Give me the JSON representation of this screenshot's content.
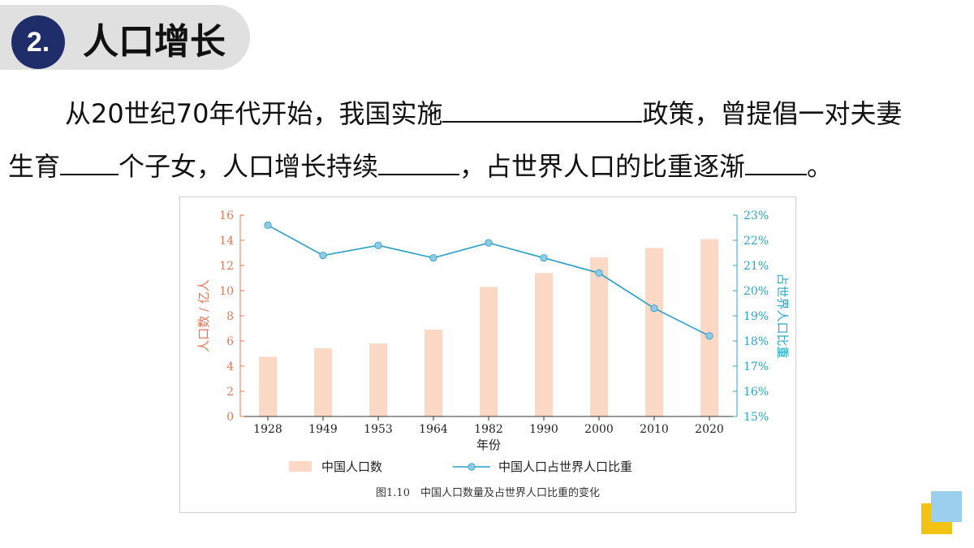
{
  "header": {
    "number": "2.",
    "title": "人口增长"
  },
  "paragraph": {
    "line1_a": "从20世纪70年代开始，我国实施",
    "line1_b": "政策，曾提倡一对夫妻",
    "line2_a": "生育",
    "line2_b": "个子女，人口增长持续",
    "line2_c": "，占世界人口的比重逐渐",
    "line2_d": "。"
  },
  "colors": {
    "bar": "#fbd9c6",
    "line": "#2a9fc9",
    "marker": "#8ec9e6",
    "left_axis": "#e5785a",
    "right_axis": "#2aa6c9",
    "badge": "#1f2d6b"
  },
  "chart_data": {
    "type": "bar",
    "categories": [
      "1928",
      "1949",
      "1953",
      "1964",
      "1982",
      "1990",
      "2000",
      "2010",
      "2020"
    ],
    "series": [
      {
        "name": "中国人口数",
        "type": "bar",
        "axis": "left",
        "values": [
          4.75,
          5.42,
          5.8,
          6.9,
          10.3,
          11.4,
          12.65,
          13.4,
          14.1
        ]
      },
      {
        "name": "中国人口占世界人口比重",
        "type": "line",
        "axis": "right",
        "values": [
          22.6,
          21.4,
          21.8,
          21.3,
          21.9,
          21.3,
          20.7,
          19.3,
          18.2
        ]
      }
    ],
    "xlabel": "年份",
    "ylabel": "人口数 / 亿人",
    "y2label": "占世界人口比重",
    "ylim": [
      0,
      16
    ],
    "yticks": [
      "0",
      "2",
      "4",
      "6",
      "8",
      "10",
      "12",
      "14",
      "16"
    ],
    "y2lim": [
      15,
      23
    ],
    "y2ticks": [
      "15%",
      "16%",
      "17%",
      "18%",
      "19%",
      "20%",
      "21%",
      "22%",
      "23%"
    ],
    "caption": "图1.10　中国人口数量及占世界人口比重的变化",
    "legend_position": "bottom",
    "grid": false
  }
}
